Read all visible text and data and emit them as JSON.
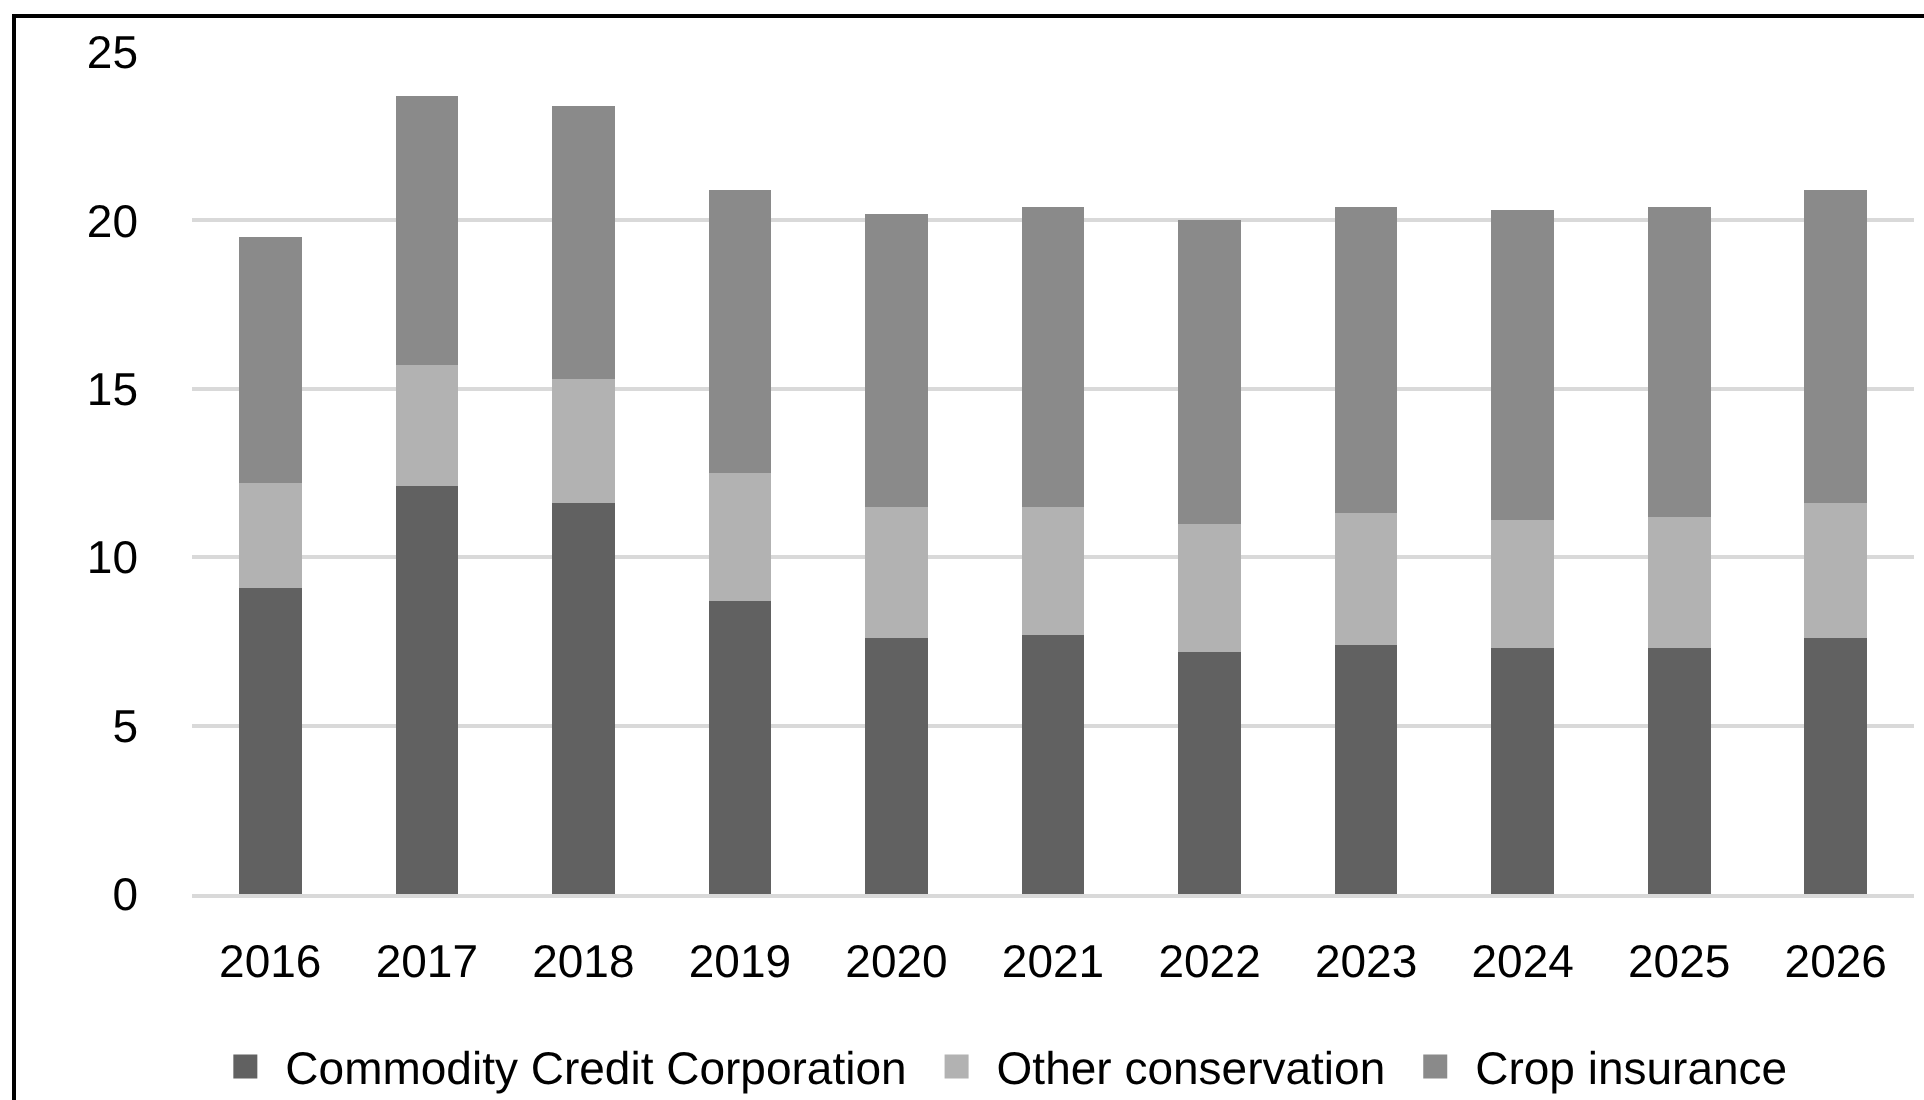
{
  "chart_data": {
    "type": "bar",
    "stacked": true,
    "categories": [
      "2016",
      "2017",
      "2018",
      "2019",
      "2020",
      "2021",
      "2022",
      "2023",
      "2024",
      "2025",
      "2026"
    ],
    "series": [
      {
        "name": "Commodity Credit Corporation",
        "color": "#616161",
        "values": [
          9.1,
          12.1,
          11.6,
          8.7,
          7.6,
          7.7,
          7.2,
          7.4,
          7.3,
          7.3,
          7.6
        ]
      },
      {
        "name": "Other conservation",
        "color": "#b2b2b2",
        "values": [
          3.1,
          3.6,
          3.7,
          3.8,
          3.9,
          3.8,
          3.8,
          3.9,
          3.8,
          3.9,
          4.0
        ]
      },
      {
        "name": "Crop insurance",
        "color": "#8a8a8a",
        "values": [
          7.3,
          8.0,
          8.1,
          8.4,
          8.7,
          8.9,
          9.0,
          9.1,
          9.2,
          9.2,
          9.3
        ]
      }
    ],
    "ylim": [
      0,
      25
    ],
    "yticks": [
      0,
      5,
      10,
      15,
      20,
      25
    ],
    "grid": "y",
    "legend": "bottom"
  }
}
